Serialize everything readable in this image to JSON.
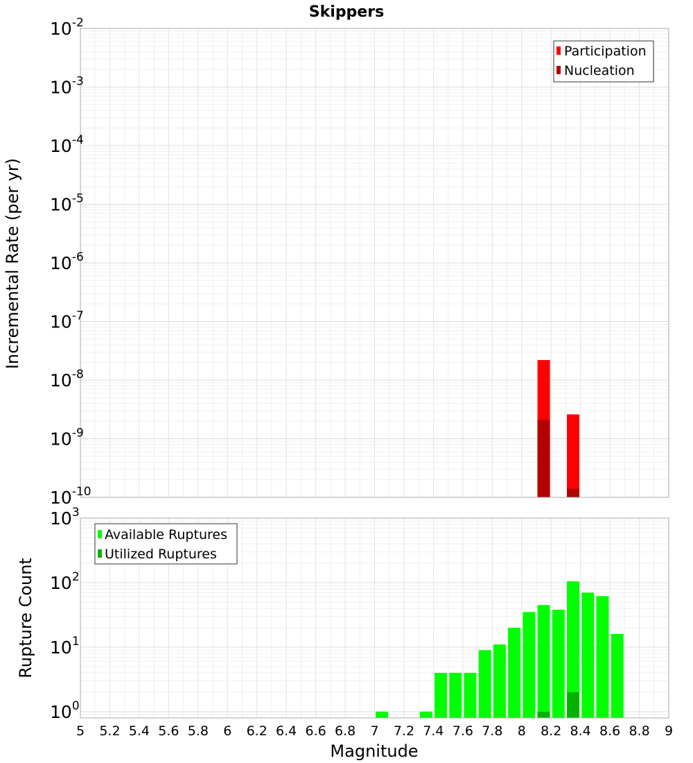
{
  "chart_data": [
    {
      "type": "bar",
      "title": "Skippers",
      "ylabel": "Incremental Rate (per yr)",
      "xlabel": "",
      "y_scale": "log",
      "ylim": [
        1e-10,
        0.01
      ],
      "xlim": [
        5,
        9
      ],
      "y_ticks": [
        {
          "base": "10",
          "exp": "-2"
        },
        {
          "base": "10",
          "exp": "-3"
        },
        {
          "base": "10",
          "exp": "-4"
        },
        {
          "base": "10",
          "exp": "-5"
        },
        {
          "base": "10",
          "exp": "-6"
        },
        {
          "base": "10",
          "exp": "-7"
        },
        {
          "base": "10",
          "exp": "-8"
        },
        {
          "base": "10",
          "exp": "-9"
        },
        {
          "base": "10",
          "exp": "-10"
        }
      ],
      "grid": true,
      "legend_position": "top-right",
      "series": [
        {
          "name": "Participation",
          "color": "#ff0000",
          "points": [
            {
              "x": 8.15,
              "y": 2.2e-08
            },
            {
              "x": 8.35,
              "y": 2.6e-09
            }
          ]
        },
        {
          "name": "Nucleation",
          "color": "#b30000",
          "points": [
            {
              "x": 8.15,
              "y": 2.1e-09
            },
            {
              "x": 8.35,
              "y": 1.4e-10
            }
          ]
        }
      ]
    },
    {
      "type": "bar",
      "title": "",
      "ylabel": "Rupture Count",
      "xlabel": "Magnitude",
      "y_scale": "log",
      "ylim": [
        0.8,
        1000
      ],
      "xlim": [
        5,
        9
      ],
      "x_ticks": [
        "5",
        "5.2",
        "5.4",
        "5.6",
        "5.8",
        "6",
        "6.2",
        "6.4",
        "6.6",
        "6.8",
        "7",
        "7.2",
        "7.4",
        "7.6",
        "7.8",
        "8",
        "8.2",
        "8.4",
        "8.6",
        "8.8",
        "9"
      ],
      "y_ticks": [
        {
          "base": "10",
          "exp": "3"
        },
        {
          "base": "10",
          "exp": "2"
        },
        {
          "base": "10",
          "exp": "1"
        },
        {
          "base": "10",
          "exp": "0"
        }
      ],
      "grid": true,
      "legend_position": "top-left",
      "series": [
        {
          "name": "Available Ruptures",
          "color": "#00ff00",
          "points": [
            {
              "x": 7.05,
              "y": 1
            },
            {
              "x": 7.35,
              "y": 1
            },
            {
              "x": 7.45,
              "y": 4
            },
            {
              "x": 7.55,
              "y": 4
            },
            {
              "x": 7.65,
              "y": 4
            },
            {
              "x": 7.75,
              "y": 9
            },
            {
              "x": 7.85,
              "y": 11
            },
            {
              "x": 7.95,
              "y": 20
            },
            {
              "x": 8.05,
              "y": 35
            },
            {
              "x": 8.15,
              "y": 45
            },
            {
              "x": 8.25,
              "y": 38
            },
            {
              "x": 8.35,
              "y": 105
            },
            {
              "x": 8.45,
              "y": 70
            },
            {
              "x": 8.55,
              "y": 62
            },
            {
              "x": 8.65,
              "y": 16
            }
          ]
        },
        {
          "name": "Utilized Ruptures",
          "color": "#00b300",
          "points": [
            {
              "x": 8.15,
              "y": 1
            },
            {
              "x": 8.35,
              "y": 2
            }
          ]
        }
      ]
    }
  ]
}
